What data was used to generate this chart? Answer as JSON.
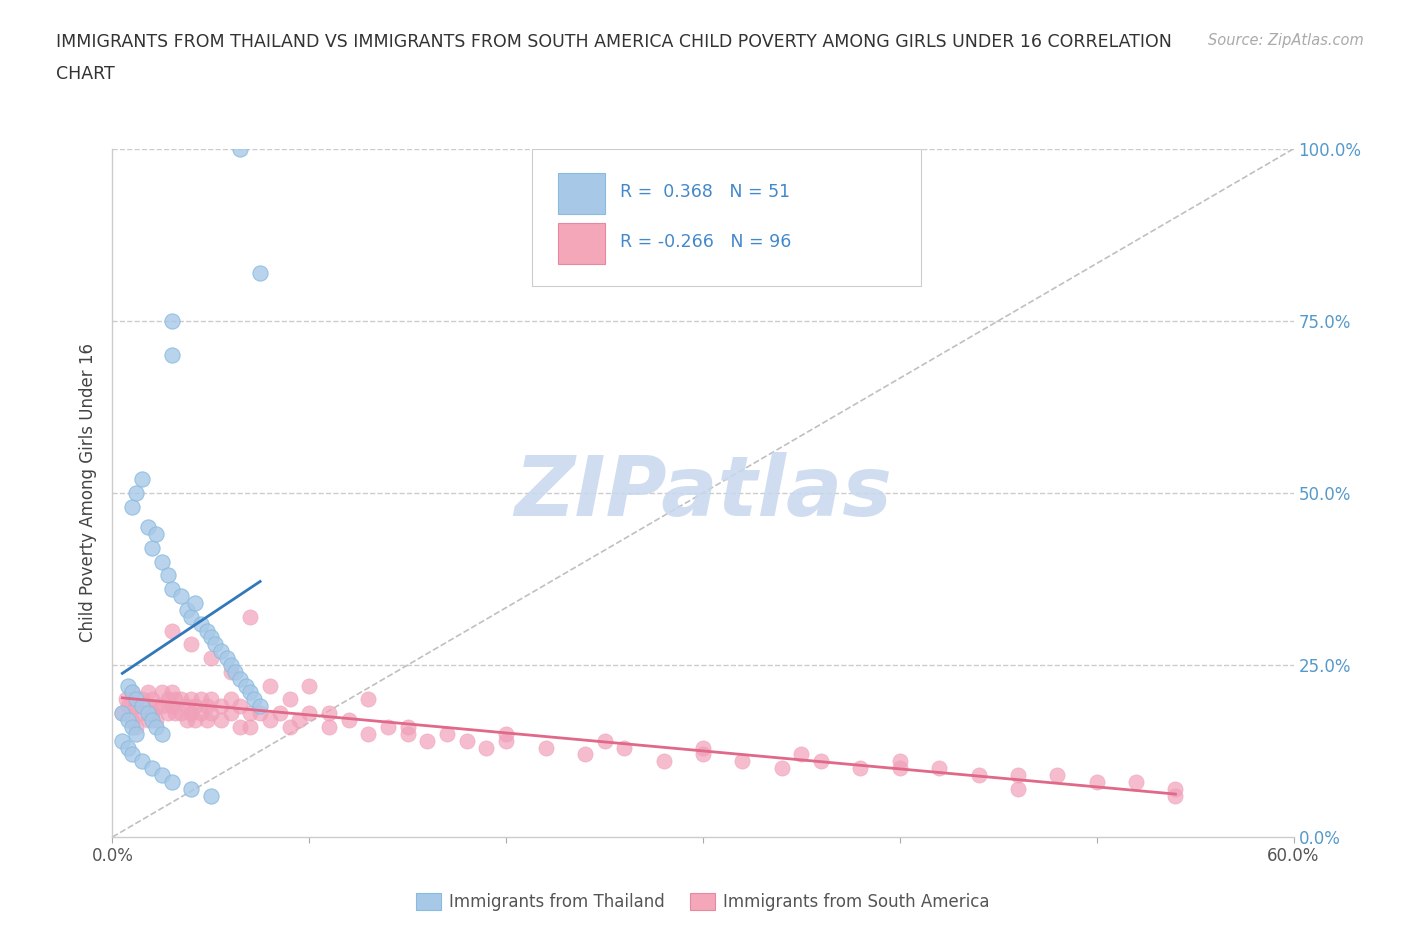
{
  "title_line1": "IMMIGRANTS FROM THAILAND VS IMMIGRANTS FROM SOUTH AMERICA CHILD POVERTY AMONG GIRLS UNDER 16 CORRELATION",
  "title_line2": "CHART",
  "source": "Source: ZipAtlas.com",
  "ylabel": "Child Poverty Among Girls Under 16",
  "xlim": [
    0.0,
    0.6
  ],
  "ylim": [
    0.0,
    1.0
  ],
  "yticks": [
    0.0,
    0.25,
    0.5,
    0.75,
    1.0
  ],
  "ytick_labels": [
    "0.0%",
    "25.0%",
    "50.0%",
    "75.0%",
    "100.0%"
  ],
  "xticks": [
    0.0,
    0.1,
    0.2,
    0.3,
    0.4,
    0.5,
    0.6
  ],
  "xtick_labels": [
    "0.0%",
    "",
    "",
    "",
    "",
    "",
    "60.0%"
  ],
  "watermark_text": "ZIPatlas",
  "watermark_color": "#c8d8ee",
  "background_color": "#ffffff",
  "grid_color": "#cccccc",
  "diagonal_line_color": "#c0c0c0",
  "blue_scatter_color": "#a8c8e8",
  "blue_line_color": "#3377bb",
  "pink_scatter_color": "#f0a0b8",
  "pink_line_color": "#e06888",
  "legend_box_color": "#eeeeee",
  "legend_text_color": "#4488cc",
  "thailand_x": [
    0.065,
    0.075,
    0.03,
    0.03,
    0.01,
    0.012,
    0.015,
    0.018,
    0.02,
    0.022,
    0.025,
    0.028,
    0.03,
    0.035,
    0.038,
    0.04,
    0.042,
    0.045,
    0.048,
    0.05,
    0.052,
    0.055,
    0.058,
    0.06,
    0.062,
    0.065,
    0.068,
    0.07,
    0.072,
    0.075,
    0.008,
    0.01,
    0.012,
    0.015,
    0.018,
    0.02,
    0.022,
    0.025,
    0.005,
    0.008,
    0.01,
    0.012,
    0.005,
    0.008,
    0.01,
    0.015,
    0.02,
    0.025,
    0.03,
    0.04,
    0.05
  ],
  "thailand_y": [
    1.0,
    0.82,
    0.75,
    0.7,
    0.48,
    0.5,
    0.52,
    0.45,
    0.42,
    0.44,
    0.4,
    0.38,
    0.36,
    0.35,
    0.33,
    0.32,
    0.34,
    0.31,
    0.3,
    0.29,
    0.28,
    0.27,
    0.26,
    0.25,
    0.24,
    0.23,
    0.22,
    0.21,
    0.2,
    0.19,
    0.22,
    0.21,
    0.2,
    0.19,
    0.18,
    0.17,
    0.16,
    0.15,
    0.18,
    0.17,
    0.16,
    0.15,
    0.14,
    0.13,
    0.12,
    0.11,
    0.1,
    0.09,
    0.08,
    0.07,
    0.06
  ],
  "sa_x": [
    0.005,
    0.007,
    0.008,
    0.01,
    0.01,
    0.012,
    0.012,
    0.015,
    0.015,
    0.018,
    0.018,
    0.02,
    0.02,
    0.022,
    0.022,
    0.025,
    0.025,
    0.028,
    0.028,
    0.03,
    0.03,
    0.032,
    0.032,
    0.035,
    0.035,
    0.038,
    0.038,
    0.04,
    0.04,
    0.042,
    0.042,
    0.045,
    0.045,
    0.048,
    0.048,
    0.05,
    0.05,
    0.055,
    0.055,
    0.06,
    0.06,
    0.065,
    0.065,
    0.07,
    0.07,
    0.075,
    0.08,
    0.085,
    0.09,
    0.095,
    0.1,
    0.11,
    0.12,
    0.13,
    0.14,
    0.15,
    0.16,
    0.17,
    0.18,
    0.19,
    0.2,
    0.22,
    0.24,
    0.26,
    0.28,
    0.3,
    0.32,
    0.34,
    0.36,
    0.38,
    0.4,
    0.42,
    0.44,
    0.46,
    0.48,
    0.5,
    0.52,
    0.54,
    0.03,
    0.04,
    0.05,
    0.06,
    0.07,
    0.08,
    0.09,
    0.1,
    0.11,
    0.13,
    0.15,
    0.2,
    0.25,
    0.3,
    0.35,
    0.4,
    0.46,
    0.54
  ],
  "sa_y": [
    0.18,
    0.2,
    0.19,
    0.21,
    0.17,
    0.19,
    0.16,
    0.2,
    0.18,
    0.21,
    0.17,
    0.2,
    0.18,
    0.19,
    0.17,
    0.21,
    0.19,
    0.2,
    0.18,
    0.21,
    0.19,
    0.2,
    0.18,
    0.2,
    0.18,
    0.19,
    0.17,
    0.2,
    0.18,
    0.19,
    0.17,
    0.2,
    0.18,
    0.19,
    0.17,
    0.2,
    0.18,
    0.19,
    0.17,
    0.2,
    0.18,
    0.19,
    0.16,
    0.18,
    0.16,
    0.18,
    0.17,
    0.18,
    0.16,
    0.17,
    0.18,
    0.16,
    0.17,
    0.15,
    0.16,
    0.15,
    0.14,
    0.15,
    0.14,
    0.13,
    0.14,
    0.13,
    0.12,
    0.13,
    0.11,
    0.12,
    0.11,
    0.1,
    0.11,
    0.1,
    0.1,
    0.1,
    0.09,
    0.09,
    0.09,
    0.08,
    0.08,
    0.07,
    0.3,
    0.28,
    0.26,
    0.24,
    0.32,
    0.22,
    0.2,
    0.22,
    0.18,
    0.2,
    0.16,
    0.15,
    0.14,
    0.13,
    0.12,
    0.11,
    0.07,
    0.06
  ]
}
